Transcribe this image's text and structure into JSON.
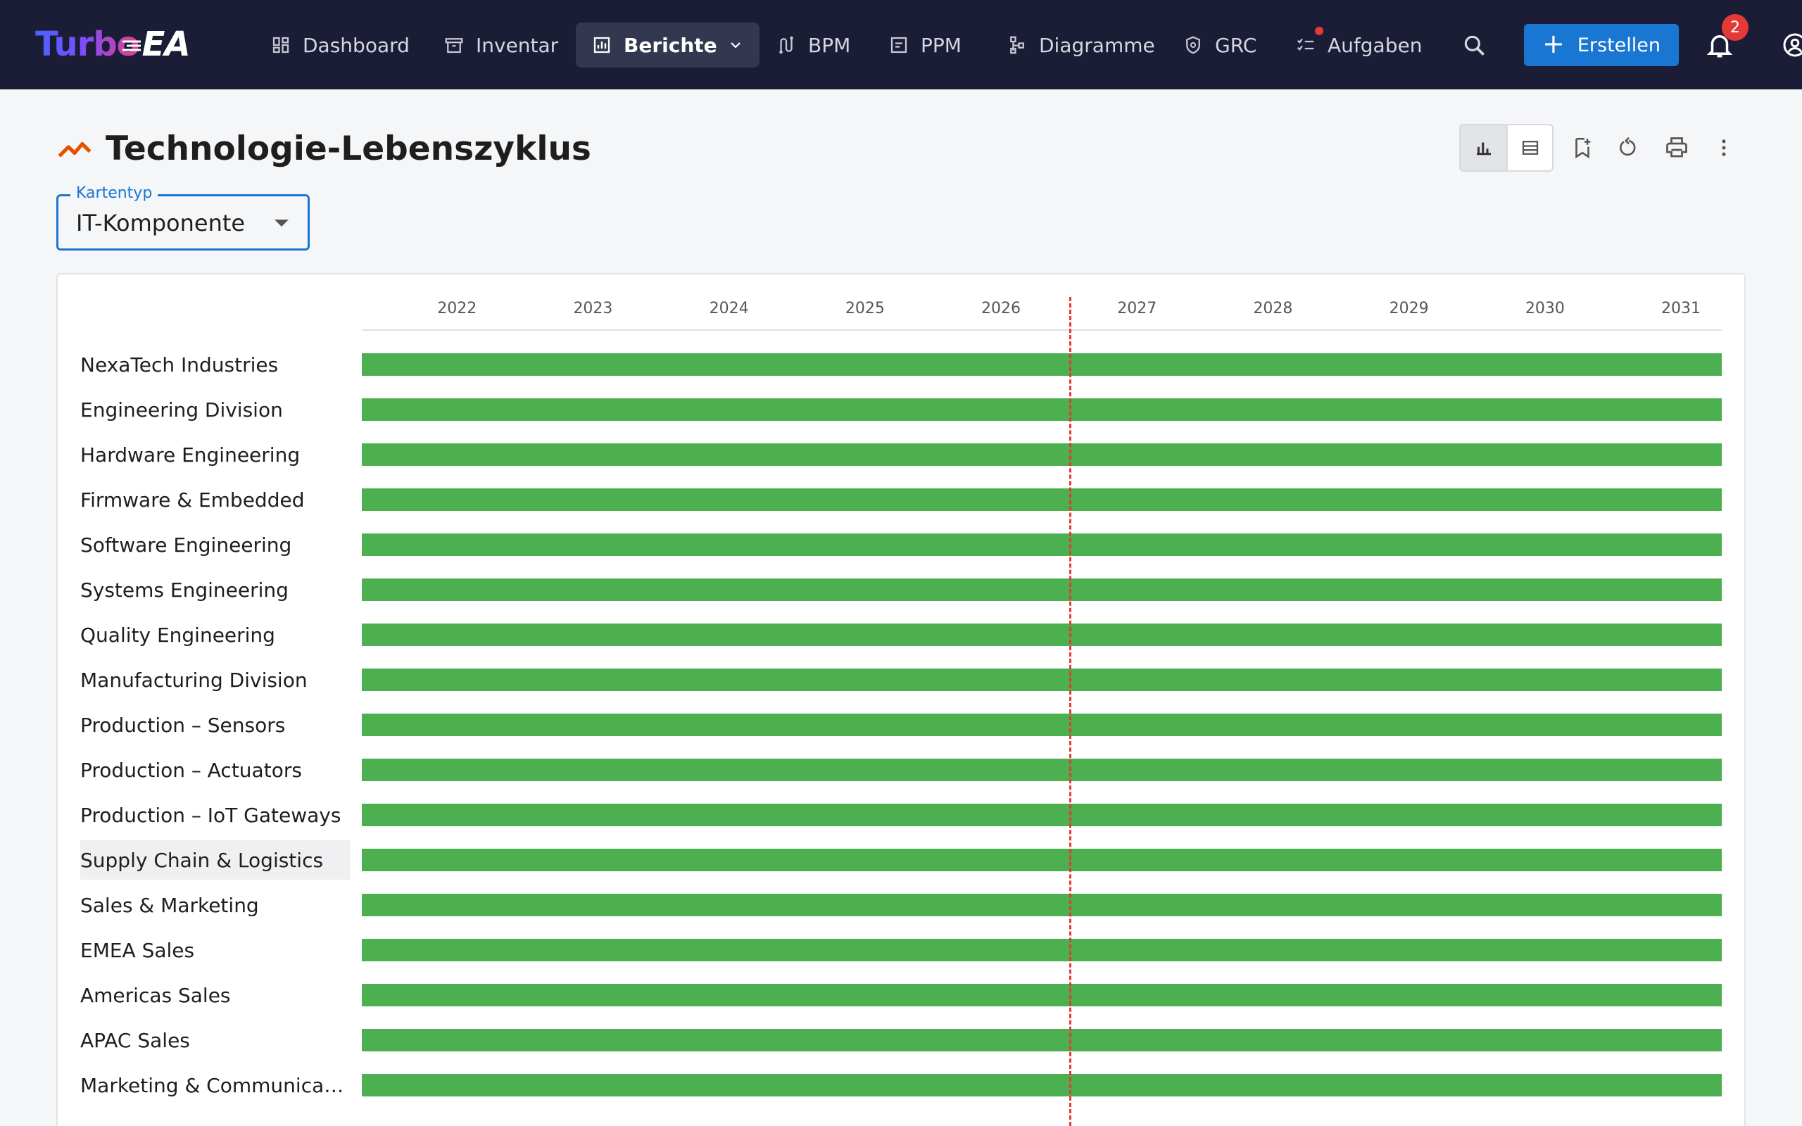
{
  "app": {
    "logo_turbo": "Turbo",
    "logo_ea": "EA"
  },
  "nav": {
    "items": [
      {
        "label": "Dashboard",
        "icon": "dashboard-icon"
      },
      {
        "label": "Inventar",
        "icon": "archive-icon"
      },
      {
        "label": "Berichte",
        "icon": "report-icon",
        "active": true
      },
      {
        "label": "BPM",
        "icon": "route-icon"
      },
      {
        "label": "PPM",
        "icon": "project-icon"
      },
      {
        "label": "Diagramme",
        "icon": "diagram-icon"
      },
      {
        "label": "GRC",
        "icon": "shield-icon"
      },
      {
        "label": "Aufgaben",
        "icon": "tasks-icon"
      }
    ],
    "create_label": "Erstellen",
    "notifications_count": "2"
  },
  "page": {
    "title": "Technologie-Lebenszyklus",
    "accent_color": "#e65100"
  },
  "filter": {
    "label": "Kartentyp",
    "value": "IT-Komponente"
  },
  "chart_data": {
    "type": "gantt",
    "x_axis_years": [
      "2022",
      "2023",
      "2024",
      "2025",
      "2026",
      "2027",
      "2028",
      "2029",
      "2030",
      "2031"
    ],
    "today_marker": "2026",
    "bar_color": "#4caf50",
    "rows": [
      {
        "name": "NexaTech Industries"
      },
      {
        "name": "Engineering Division"
      },
      {
        "name": "Hardware Engineering"
      },
      {
        "name": "Firmware & Embedded"
      },
      {
        "name": "Software Engineering"
      },
      {
        "name": "Systems Engineering"
      },
      {
        "name": "Quality Engineering"
      },
      {
        "name": "Manufacturing Division"
      },
      {
        "name": "Production – Sensors"
      },
      {
        "name": "Production – Actuators"
      },
      {
        "name": "Production – IoT Gateways"
      },
      {
        "name": "Supply Chain & Logistics",
        "highlighted": true
      },
      {
        "name": "Sales & Marketing"
      },
      {
        "name": "EMEA Sales"
      },
      {
        "name": "Americas Sales"
      },
      {
        "name": "APAC Sales"
      },
      {
        "name": "Marketing & Communicatio..."
      }
    ]
  }
}
